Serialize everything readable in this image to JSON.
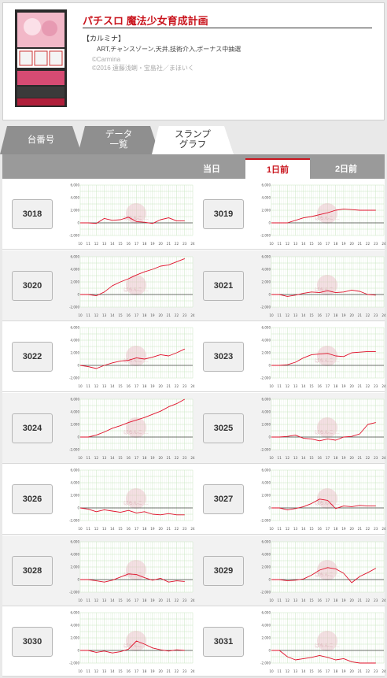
{
  "header": {
    "title": "パチスロ 魔法少女育成計画",
    "maker": "【カルミナ】",
    "features": "ART,チャンスゾーン,天井,技術介入,ボーナス中抽選",
    "copyright_1": "©Carmina",
    "copyright_2": "©2016 遠藤浅蜊・宝島社／まほいく"
  },
  "tabs": [
    {
      "label": "台番号"
    },
    {
      "label": "データ\n一覧"
    },
    {
      "label": "スランプ\nグラフ"
    }
  ],
  "days": {
    "today": "当日",
    "prev1": "1日前",
    "prev2": "2日前"
  },
  "graph_axis": {
    "y_labels": [
      "6,000",
      "4,000",
      "2,000",
      "0",
      "-2,000"
    ],
    "x_labels": [
      "10",
      "11",
      "12",
      "13",
      "14",
      "15",
      "16",
      "17",
      "18",
      "19",
      "20",
      "21",
      "22",
      "23",
      "24"
    ],
    "watermark": "ぱちんこ ..."
  },
  "colors": {
    "accent": "#c9141d",
    "grid": "#c8e6c0",
    "line": "#e0102a"
  },
  "machines": [
    {
      "number": "3018"
    },
    {
      "number": "3019"
    },
    {
      "number": "3020"
    },
    {
      "number": "3021"
    },
    {
      "number": "3022"
    },
    {
      "number": "3023"
    },
    {
      "number": "3024"
    },
    {
      "number": "3025"
    },
    {
      "number": "3026"
    },
    {
      "number": "3027"
    },
    {
      "number": "3028"
    },
    {
      "number": "3029"
    },
    {
      "number": "3030"
    },
    {
      "number": "3031"
    }
  ],
  "chart_data": [
    {
      "type": "line",
      "series": [
        {
          "x": [
            10,
            11,
            12,
            13,
            14,
            15,
            16,
            17,
            18,
            19,
            20,
            21,
            22,
            23
          ],
          "y": [
            0,
            0,
            -100,
            700,
            400,
            500,
            900,
            200,
            100,
            -100,
            500,
            800,
            300,
            300
          ]
        }
      ],
      "ylim": [
        -2000,
        6000
      ],
      "xlim": [
        10,
        24
      ]
    },
    {
      "type": "line",
      "series": [
        {
          "x": [
            10,
            11,
            12,
            13,
            14,
            15,
            16,
            17,
            18,
            19,
            20,
            21,
            22,
            23
          ],
          "y": [
            0,
            0,
            0,
            400,
            800,
            1000,
            1300,
            1600,
            2000,
            2200,
            2100,
            2000,
            2000,
            2000
          ]
        }
      ],
      "ylim": [
        -2000,
        6000
      ],
      "xlim": [
        10,
        24
      ]
    },
    {
      "type": "line",
      "series": [
        {
          "x": [
            10,
            11,
            12,
            13,
            14,
            15,
            16,
            17,
            18,
            19,
            20,
            21,
            22,
            23
          ],
          "y": [
            0,
            0,
            -200,
            400,
            1400,
            2000,
            2500,
            3100,
            3600,
            4000,
            4500,
            4700,
            5200,
            5700
          ]
        }
      ],
      "ylim": [
        -2000,
        6000
      ],
      "xlim": [
        10,
        24
      ]
    },
    {
      "type": "line",
      "series": [
        {
          "x": [
            10,
            11,
            12,
            13,
            14,
            15,
            16,
            17,
            18,
            19,
            20,
            21,
            22,
            23
          ],
          "y": [
            0,
            0,
            -300,
            -100,
            200,
            400,
            300,
            600,
            300,
            400,
            700,
            500,
            0,
            -100
          ]
        }
      ],
      "ylim": [
        -2000,
        6000
      ],
      "xlim": [
        10,
        24
      ]
    },
    {
      "type": "line",
      "series": [
        {
          "x": [
            10,
            11,
            12,
            13,
            14,
            15,
            16,
            17,
            18,
            19,
            20,
            21,
            22,
            23
          ],
          "y": [
            0,
            -200,
            -500,
            0,
            400,
            700,
            800,
            1200,
            1000,
            1300,
            1700,
            1500,
            2000,
            2600
          ]
        }
      ],
      "ylim": [
        -2000,
        6000
      ],
      "xlim": [
        10,
        24
      ]
    },
    {
      "type": "line",
      "series": [
        {
          "x": [
            10,
            11,
            12,
            13,
            14,
            15,
            16,
            17,
            18,
            19,
            20,
            21,
            22,
            23
          ],
          "y": [
            0,
            0,
            100,
            500,
            1200,
            1700,
            1800,
            1900,
            1500,
            1400,
            2000,
            2100,
            2200,
            2200
          ]
        }
      ],
      "ylim": [
        -2000,
        6000
      ],
      "xlim": [
        10,
        24
      ]
    },
    {
      "type": "line",
      "series": [
        {
          "x": [
            10,
            11,
            12,
            13,
            14,
            15,
            16,
            17,
            18,
            19,
            20,
            21,
            22,
            23
          ],
          "y": [
            0,
            0,
            300,
            800,
            1400,
            1800,
            2300,
            2700,
            3100,
            3600,
            4100,
            4800,
            5300,
            6000
          ]
        }
      ],
      "ylim": [
        -2000,
        6000
      ],
      "xlim": [
        10,
        24
      ]
    },
    {
      "type": "line",
      "series": [
        {
          "x": [
            10,
            11,
            12,
            13,
            14,
            15,
            16,
            17,
            18,
            19,
            20,
            21,
            22,
            23
          ],
          "y": [
            0,
            0,
            100,
            300,
            -200,
            -300,
            -600,
            -300,
            -500,
            0,
            100,
            500,
            2000,
            2300
          ]
        }
      ],
      "ylim": [
        -2000,
        6000
      ],
      "xlim": [
        10,
        24
      ]
    },
    {
      "type": "line",
      "series": [
        {
          "x": [
            10,
            11,
            12,
            13,
            14,
            15,
            16,
            17,
            18,
            19,
            20,
            21,
            22,
            23
          ],
          "y": [
            0,
            -200,
            -600,
            -300,
            -500,
            -700,
            -400,
            -800,
            -600,
            -1000,
            -1100,
            -900,
            -1100,
            -1100
          ]
        }
      ],
      "ylim": [
        -2000,
        6000
      ],
      "xlim": [
        10,
        24
      ]
    },
    {
      "type": "line",
      "series": [
        {
          "x": [
            10,
            11,
            12,
            13,
            14,
            15,
            16,
            17,
            18,
            19,
            20,
            21,
            22,
            23
          ],
          "y": [
            0,
            0,
            -300,
            -100,
            200,
            700,
            1400,
            1200,
            -100,
            300,
            200,
            400,
            300,
            300
          ]
        }
      ],
      "ylim": [
        -2000,
        6000
      ],
      "xlim": [
        10,
        24
      ]
    },
    {
      "type": "line",
      "series": [
        {
          "x": [
            10,
            11,
            12,
            13,
            14,
            15,
            16,
            17,
            18,
            19,
            20,
            21,
            22,
            23
          ],
          "y": [
            0,
            0,
            -200,
            -400,
            -100,
            400,
            900,
            800,
            300,
            -100,
            200,
            -400,
            -200,
            -300
          ]
        }
      ],
      "ylim": [
        -2000,
        6000
      ],
      "xlim": [
        10,
        24
      ]
    },
    {
      "type": "line",
      "series": [
        {
          "x": [
            10,
            11,
            12,
            13,
            14,
            15,
            16,
            17,
            18,
            19,
            20,
            21,
            22,
            23
          ],
          "y": [
            0,
            0,
            -200,
            -100,
            100,
            700,
            1500,
            1900,
            1700,
            1000,
            -500,
            500,
            1100,
            1800
          ]
        }
      ],
      "ylim": [
        -2000,
        6000
      ],
      "xlim": [
        10,
        24
      ]
    },
    {
      "type": "line",
      "series": [
        {
          "x": [
            10,
            11,
            12,
            13,
            14,
            15,
            16,
            17,
            18,
            19,
            20,
            21,
            22,
            23
          ],
          "y": [
            0,
            0,
            -300,
            -100,
            -400,
            -200,
            200,
            1500,
            1000,
            400,
            100,
            -100,
            100,
            0
          ]
        }
      ],
      "ylim": [
        -2000,
        6000
      ],
      "xlim": [
        10,
        24
      ]
    },
    {
      "type": "line",
      "series": [
        {
          "x": [
            10,
            11,
            12,
            13,
            14,
            15,
            16,
            17,
            18,
            19,
            20,
            21,
            22,
            23
          ],
          "y": [
            0,
            0,
            -1000,
            -1500,
            -1300,
            -1100,
            -800,
            -1100,
            -1500,
            -1300,
            -1800,
            -2000,
            -2000,
            -2000
          ]
        }
      ],
      "ylim": [
        -2000,
        6000
      ],
      "xlim": [
        10,
        24
      ]
    }
  ]
}
